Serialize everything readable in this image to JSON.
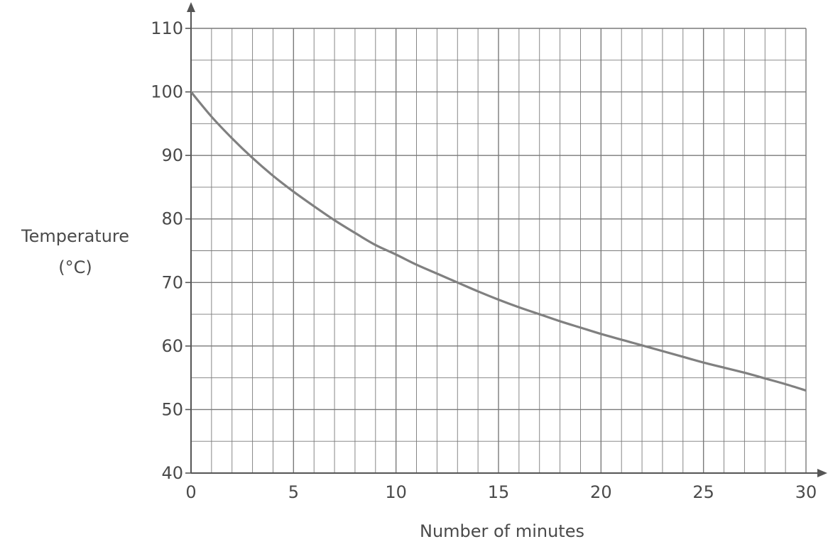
{
  "chart_data": {
    "type": "line",
    "xlabel": "Number of minutes",
    "ylabel": [
      "Temperature",
      "(°C)"
    ],
    "xlim": [
      0,
      30
    ],
    "ylim": [
      40,
      110
    ],
    "x_ticks": [
      0,
      5,
      10,
      15,
      20,
      25,
      30
    ],
    "y_ticks": [
      40,
      50,
      60,
      70,
      80,
      90,
      100,
      110
    ],
    "grid": true,
    "x_minor_step": 1,
    "y_minor_step": 5,
    "series": [
      {
        "x": [
          0,
          1,
          2,
          3,
          4,
          5,
          6,
          7,
          8,
          9,
          10,
          11,
          12,
          13,
          14,
          15,
          16,
          17,
          18,
          19,
          20,
          21,
          22,
          23,
          24,
          25,
          26,
          27,
          28,
          29,
          30
        ],
        "values": [
          100,
          96.1,
          92.7,
          89.6,
          86.8,
          84.3,
          82.0,
          79.8,
          77.8,
          75.9,
          74.4,
          72.8,
          71.4,
          70.0,
          68.6,
          67.3,
          66.1,
          65.0,
          63.9,
          62.9,
          61.9,
          61.0,
          60.1,
          59.2,
          58.3,
          57.4,
          56.6,
          55.8,
          54.9,
          54.0,
          53.0
        ]
      }
    ],
    "colors": {
      "line": "#808080",
      "grid": "#7a7a7a",
      "axis": "#555555",
      "text": "#4a4a4a"
    }
  }
}
